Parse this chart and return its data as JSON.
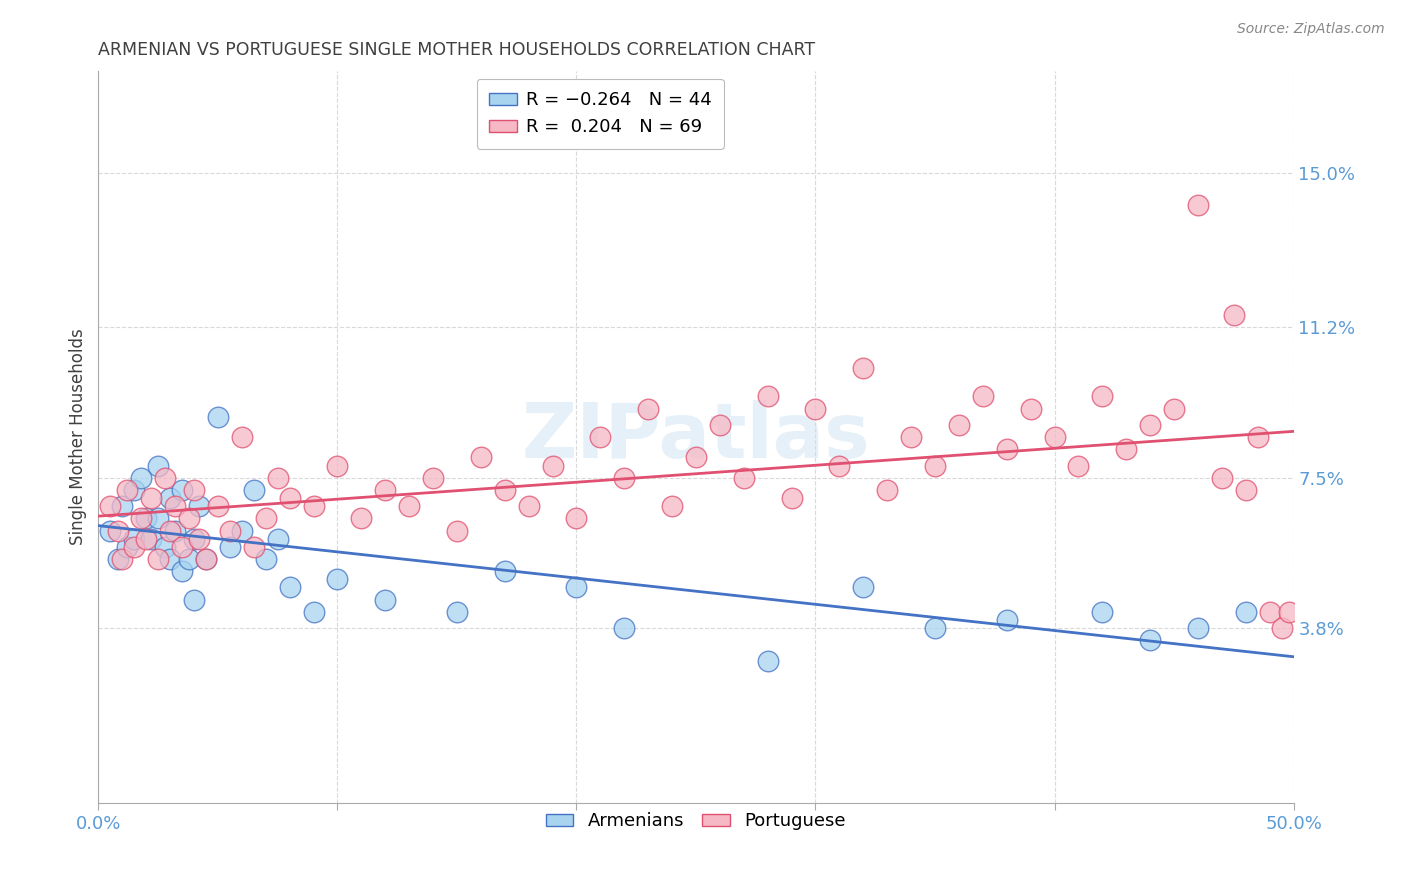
{
  "title": "ARMENIAN VS PORTUGUESE SINGLE MOTHER HOUSEHOLDS CORRELATION CHART",
  "source": "Source: ZipAtlas.com",
  "ylabel": "Single Mother Households",
  "xlim": [
    0.0,
    0.5
  ],
  "ylim": [
    -0.005,
    0.175
  ],
  "yticks": [
    0.038,
    0.075,
    0.112,
    0.15
  ],
  "ytick_labels": [
    "3.8%",
    "7.5%",
    "11.2%",
    "15.0%"
  ],
  "xticks": [
    0.0,
    0.1,
    0.2,
    0.3,
    0.4,
    0.5
  ],
  "armenian_color": "#a8d4f0",
  "portuguese_color": "#f5b8c4",
  "armenian_line_color": "#4472c4",
  "portuguese_line_color": "#e05070",
  "watermark": "ZIPatlas",
  "background_color": "#ffffff",
  "grid_color": "#d0d0d0",
  "tick_label_color": "#5b9bd5",
  "title_color": "#404040",
  "ylabel_color": "#404040",
  "armenian_x": [
    0.005,
    0.008,
    0.01,
    0.012,
    0.015,
    0.015,
    0.018,
    0.02,
    0.022,
    0.025,
    0.025,
    0.028,
    0.03,
    0.03,
    0.032,
    0.035,
    0.035,
    0.038,
    0.04,
    0.04,
    0.042,
    0.045,
    0.05,
    0.055,
    0.06,
    0.065,
    0.07,
    0.075,
    0.08,
    0.09,
    0.1,
    0.12,
    0.15,
    0.17,
    0.2,
    0.22,
    0.28,
    0.32,
    0.35,
    0.38,
    0.42,
    0.44,
    0.46,
    0.48
  ],
  "armenian_y": [
    0.062,
    0.055,
    0.068,
    0.058,
    0.072,
    0.06,
    0.075,
    0.065,
    0.06,
    0.078,
    0.065,
    0.058,
    0.055,
    0.07,
    0.062,
    0.072,
    0.052,
    0.055,
    0.06,
    0.045,
    0.068,
    0.055,
    0.09,
    0.058,
    0.062,
    0.072,
    0.055,
    0.06,
    0.048,
    0.042,
    0.05,
    0.045,
    0.042,
    0.052,
    0.048,
    0.038,
    0.03,
    0.048,
    0.038,
    0.04,
    0.042,
    0.035,
    0.038,
    0.042
  ],
  "portuguese_x": [
    0.005,
    0.008,
    0.01,
    0.012,
    0.015,
    0.018,
    0.02,
    0.022,
    0.025,
    0.028,
    0.03,
    0.032,
    0.035,
    0.038,
    0.04,
    0.042,
    0.045,
    0.05,
    0.055,
    0.06,
    0.065,
    0.07,
    0.075,
    0.08,
    0.09,
    0.1,
    0.11,
    0.12,
    0.13,
    0.14,
    0.15,
    0.16,
    0.17,
    0.18,
    0.19,
    0.2,
    0.21,
    0.22,
    0.23,
    0.24,
    0.25,
    0.26,
    0.27,
    0.28,
    0.29,
    0.3,
    0.31,
    0.32,
    0.33,
    0.34,
    0.35,
    0.36,
    0.37,
    0.38,
    0.39,
    0.4,
    0.41,
    0.42,
    0.43,
    0.44,
    0.45,
    0.46,
    0.47,
    0.475,
    0.48,
    0.485,
    0.49,
    0.495,
    0.498
  ],
  "portuguese_y": [
    0.068,
    0.062,
    0.055,
    0.072,
    0.058,
    0.065,
    0.06,
    0.07,
    0.055,
    0.075,
    0.062,
    0.068,
    0.058,
    0.065,
    0.072,
    0.06,
    0.055,
    0.068,
    0.062,
    0.085,
    0.058,
    0.065,
    0.075,
    0.07,
    0.068,
    0.078,
    0.065,
    0.072,
    0.068,
    0.075,
    0.062,
    0.08,
    0.072,
    0.068,
    0.078,
    0.065,
    0.085,
    0.075,
    0.092,
    0.068,
    0.08,
    0.088,
    0.075,
    0.095,
    0.07,
    0.092,
    0.078,
    0.102,
    0.072,
    0.085,
    0.078,
    0.088,
    0.095,
    0.082,
    0.092,
    0.085,
    0.078,
    0.095,
    0.082,
    0.088,
    0.092,
    0.142,
    0.075,
    0.115,
    0.072,
    0.085,
    0.042,
    0.038,
    0.042
  ]
}
